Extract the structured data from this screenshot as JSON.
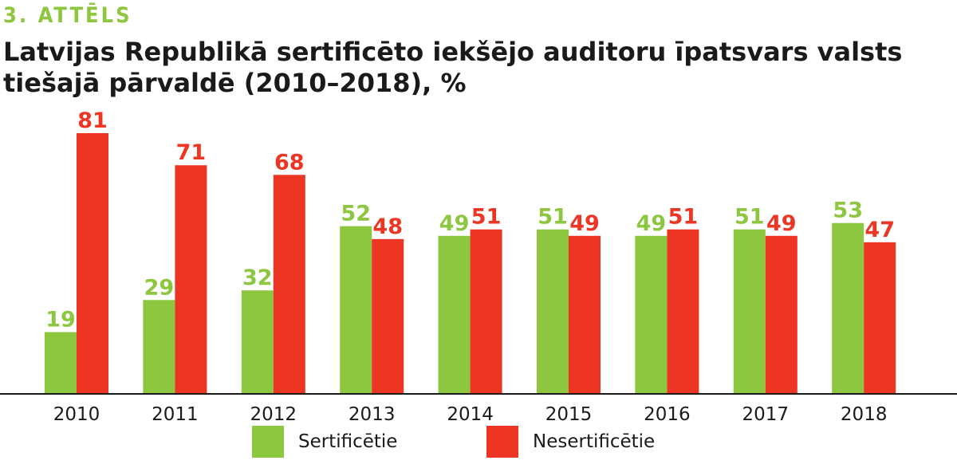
{
  "figure_label": "3. ATTĒLS",
  "title": "Latvijas Republikā sertificēto iekšējo auditoru īpatsvars valsts tiešajā pārvaldē (2010–2018), %",
  "colors": {
    "series_1": "#8dc63f",
    "series_2": "#ed3524",
    "axis": "#1a1a1a"
  },
  "chart_data": {
    "type": "bar",
    "categories": [
      "2010",
      "2011",
      "2012",
      "2013",
      "2014",
      "2015",
      "2016",
      "2017",
      "2018"
    ],
    "series": [
      {
        "name": "Sertificētie",
        "values": [
          19,
          29,
          32,
          52,
          49,
          51,
          49,
          51,
          53
        ]
      },
      {
        "name": "Nesertificētie",
        "values": [
          81,
          71,
          68,
          48,
          51,
          49,
          51,
          49,
          47
        ]
      }
    ],
    "ylim": [
      0,
      81
    ],
    "grid": false,
    "legend_position": "bottom",
    "data_labels": true
  },
  "legend": [
    {
      "label": "Sertificētie",
      "color": "#8dc63f"
    },
    {
      "label": "Nesertificētie",
      "color": "#ed3524"
    }
  ]
}
